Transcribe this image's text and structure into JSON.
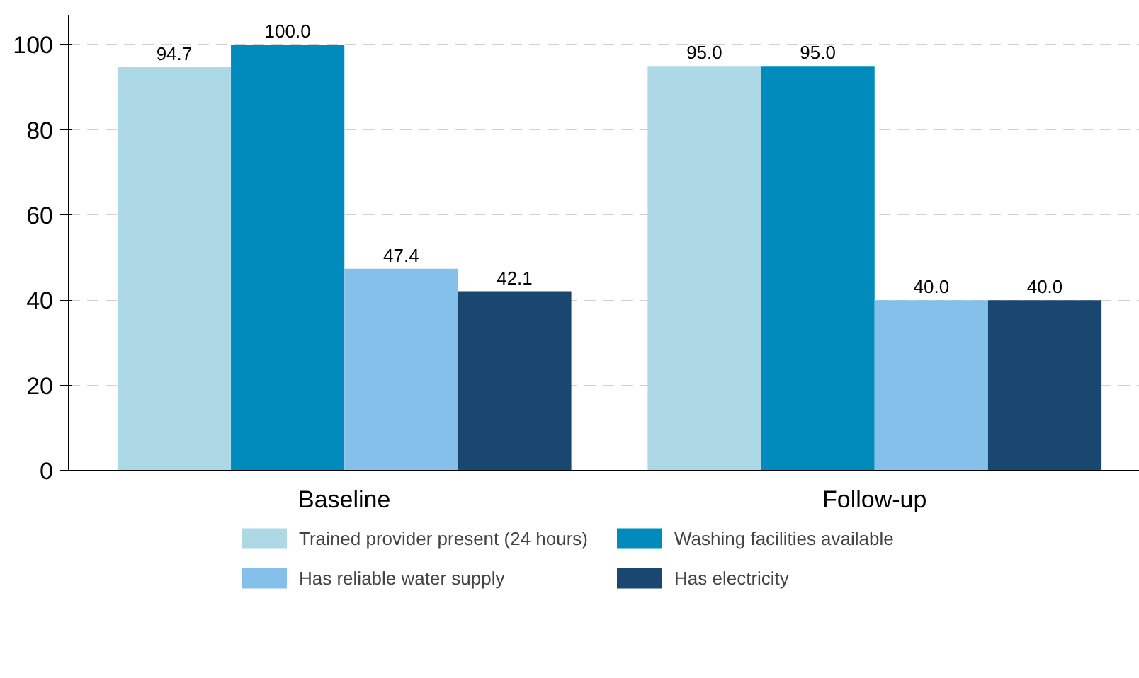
{
  "chart_data": {
    "type": "bar",
    "categories": [
      "Baseline",
      "Follow-up"
    ],
    "series": [
      {
        "name": "Trained provider present (24 hours)",
        "color": "#add8e6",
        "values": [
          94.7,
          95.0
        ],
        "value_labels": [
          "94.7",
          "95.0"
        ]
      },
      {
        "name": "Washing facilities available",
        "color": "#008bbc",
        "values": [
          100.0,
          95.0
        ],
        "value_labels": [
          "100.0",
          "95.0"
        ]
      },
      {
        "name": "Has reliable water supply",
        "color": "#85c0eb",
        "values": [
          47.4,
          40.0
        ],
        "value_labels": [
          "47.4",
          "40.0"
        ]
      },
      {
        "name": "Has electricity",
        "color": "#1a476f",
        "values": [
          42.1,
          40.0
        ],
        "value_labels": [
          "42.1",
          "40.0"
        ]
      }
    ],
    "ylim": [
      0,
      107
    ],
    "yticks": [
      0,
      20,
      40,
      60,
      80,
      100
    ],
    "grid": "y",
    "legend": "bottom"
  }
}
